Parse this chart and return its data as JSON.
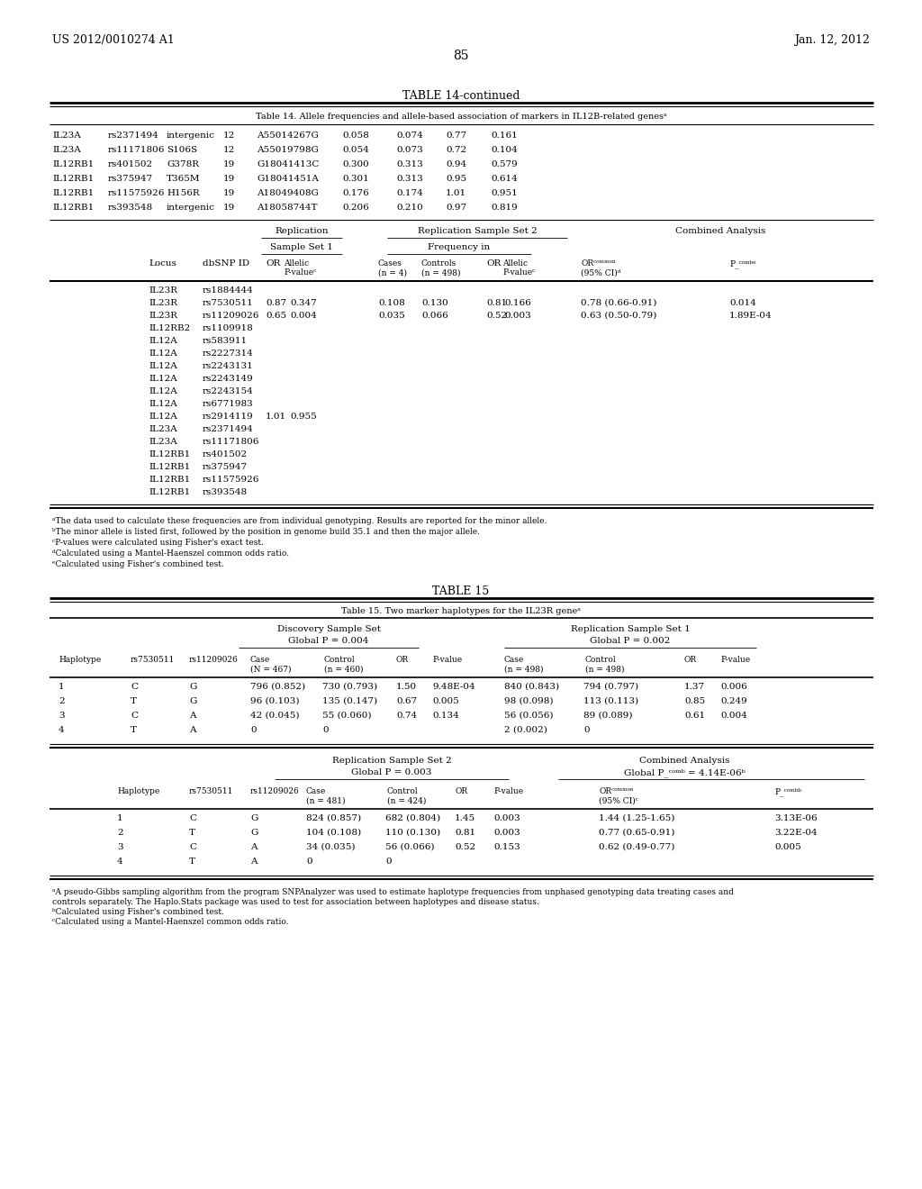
{
  "header_left": "US 2012/0010274 A1",
  "header_right": "Jan. 12, 2012",
  "page_number": "85",
  "bg_color": "#ffffff",
  "text_color": "#000000"
}
